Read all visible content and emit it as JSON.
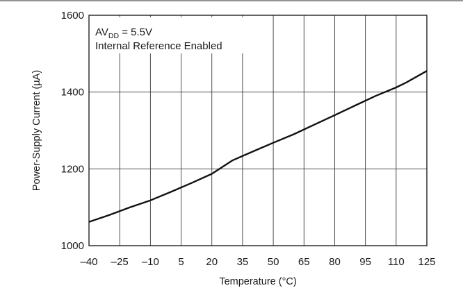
{
  "chart_data": {
    "type": "line",
    "xlabel": "Temperature (°C)",
    "ylabel": "Power-Supply Current (µA)",
    "annotation_line1": {
      "main": "AV",
      "sub": "DD",
      "rest": " = 5.5V"
    },
    "annotation_line2": "Internal Reference Enabled",
    "xlim": [
      -40,
      125
    ],
    "ylim": [
      1000,
      1600
    ],
    "x_ticks": [
      -40,
      -25,
      -10,
      5,
      20,
      35,
      50,
      65,
      80,
      95,
      110,
      125
    ],
    "x_tick_labels": [
      "–40",
      "–25",
      "–10",
      "5",
      "20",
      "35",
      "50",
      "65",
      "80",
      "95",
      "110",
      "125"
    ],
    "y_ticks": [
      1000,
      1200,
      1400,
      1600
    ],
    "y_tick_labels": [
      "1000",
      "1200",
      "1400",
      "1600"
    ],
    "grid": true,
    "series": [
      {
        "x": [
          -40,
          -30,
          -20,
          -10,
          0,
          10,
          20,
          30,
          40,
          50,
          60,
          70,
          80,
          90,
          100,
          110,
          115,
          125
        ],
        "y": [
          1062,
          1080,
          1100,
          1118,
          1140,
          1163,
          1187,
          1222,
          1245,
          1268,
          1290,
          1315,
          1340,
          1365,
          1390,
          1412,
          1425,
          1455
        ]
      }
    ]
  }
}
